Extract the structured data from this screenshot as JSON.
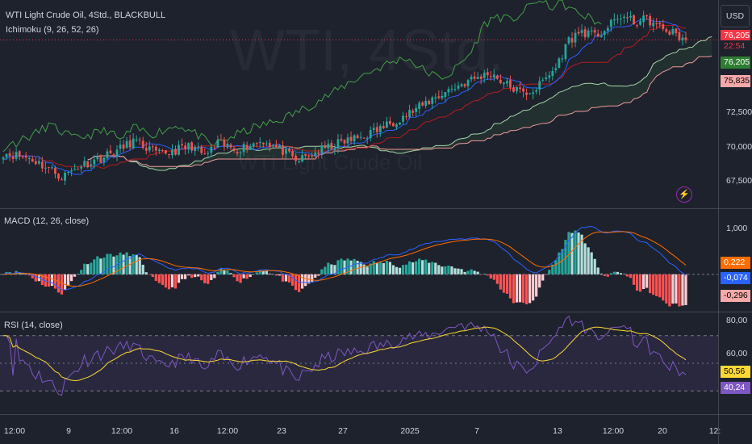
{
  "header": {
    "symbol_line": "WTI Light Crude Oil, 4Std., BLACKBULL",
    "indicator": "Ichimoku (9, 26, 52, 26)",
    "currency_button": "USD"
  },
  "watermark": {
    "big": "WTI, 4Std.",
    "small": "WTI Light Crude Oil"
  },
  "colors": {
    "bg": "#1e222d",
    "up": "#26a69a",
    "down": "#ef5350",
    "tenkan": "#2962ff",
    "kijun": "#b71c1c",
    "chikou": "#43a047",
    "spanA": "#a5d6a7",
    "spanB": "#ef9a9a",
    "macd": "#2962ff",
    "signal": "#ff6d00",
    "rsi": "#7e57c2",
    "rsi_ma": "#fdd835"
  },
  "chart_data": [
    {
      "type": "candlestick",
      "title": "WTI Light Crude Oil, 4Std., BLACKBULL",
      "y_ticks": [
        "76,205",
        "72,500",
        "70,000",
        "67,500"
      ],
      "price_badges": [
        {
          "label": "76,205",
          "role": "top",
          "color": "#f23645"
        },
        {
          "label": "22:54",
          "role": "countdown",
          "color": "#f23645"
        },
        {
          "label": "76,205",
          "role": "last",
          "color": "#2e7d32"
        },
        {
          "label": "75,835",
          "role": "other",
          "color": "#f7a8a8"
        }
      ],
      "ylim": [
        66.5,
        78.5
      ],
      "last_price": 76.205,
      "ichimoku": "Ichimoku (9, 26, 52, 26)",
      "close_anchors": [
        [
          0,
          69.7
        ],
        [
          8,
          69.4
        ],
        [
          14,
          68.8
        ],
        [
          18,
          68.3
        ],
        [
          24,
          69.0
        ],
        [
          30,
          69.4
        ],
        [
          36,
          69.9
        ],
        [
          40,
          70.4
        ],
        [
          48,
          69.6
        ],
        [
          54,
          69.9
        ],
        [
          58,
          70.1
        ],
        [
          62,
          69.5
        ],
        [
          66,
          70.2
        ],
        [
          72,
          69.9
        ],
        [
          80,
          70.4
        ],
        [
          86,
          69.8
        ],
        [
          90,
          69.2
        ],
        [
          96,
          69.7
        ],
        [
          104,
          70.3
        ],
        [
          110,
          70.6
        ],
        [
          116,
          71.1
        ],
        [
          122,
          71.7
        ],
        [
          128,
          72.3
        ],
        [
          132,
          72.8
        ],
        [
          138,
          73.4
        ],
        [
          144,
          73.9
        ],
        [
          150,
          74.3
        ],
        [
          155,
          73.6
        ],
        [
          160,
          73.1
        ],
        [
          164,
          73.4
        ],
        [
          170,
          74.6
        ],
        [
          174,
          76.2
        ],
        [
          178,
          76.7
        ],
        [
          182,
          76.4
        ],
        [
          186,
          76.9
        ],
        [
          190,
          77.6
        ],
        [
          194,
          77.2
        ],
        [
          198,
          77.4
        ],
        [
          202,
          76.9
        ],
        [
          206,
          76.6
        ],
        [
          210,
          76.205
        ]
      ]
    },
    {
      "type": "line",
      "title": "MACD (12, 26, close)",
      "y_ticks": [
        "1,000"
      ],
      "value_badges": [
        "0,222",
        "-0,074",
        "-0,296"
      ],
      "ylim": [
        -0.65,
        1.12
      ],
      "series": [
        {
          "name": "MACD"
        },
        {
          "name": "Signal"
        },
        {
          "name": "Histogram"
        }
      ]
    },
    {
      "type": "line",
      "title": "RSI (14, close)",
      "y_ticks": [
        "80,00",
        "60,00"
      ],
      "value_badges": [
        "50,56",
        "40,24"
      ],
      "ylim": [
        15,
        85
      ],
      "band": [
        30,
        70
      ]
    }
  ],
  "x_ticks": [
    "12:00",
    "9",
    "12:00",
    "16",
    "12:00",
    "23",
    "27",
    "2025",
    "7",
    "13",
    "12:00",
    "20",
    "12:"
  ]
}
